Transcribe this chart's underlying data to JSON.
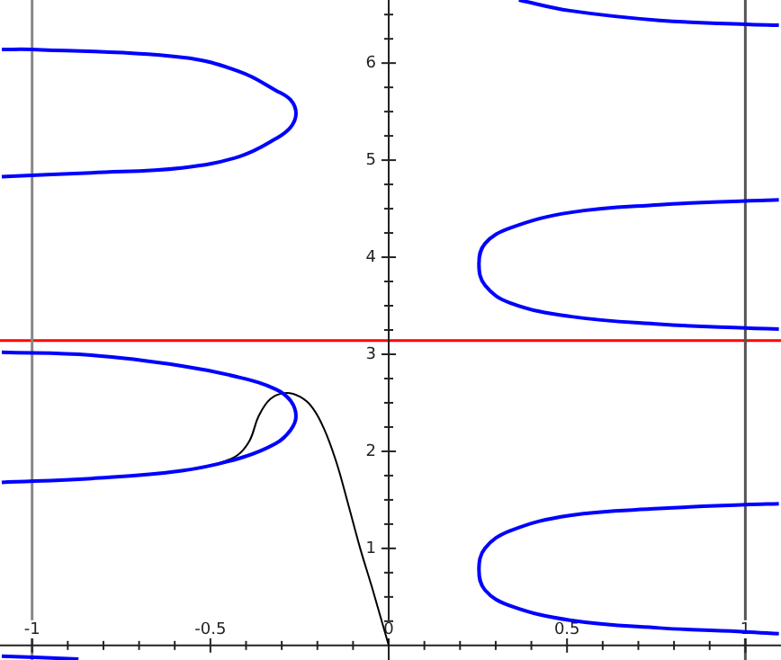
{
  "chart_data": {
    "type": "line",
    "legend": false,
    "marker": "none",
    "line_style": "solid",
    "xlim": [
      -1.09,
      1.1
    ],
    "ylim": [
      -0.15,
      6.65
    ],
    "xticks": [
      -1,
      {
        "value": -0.9,
        "label": null
      },
      {
        "value": -0.8,
        "label": null
      },
      {
        "value": -0.7,
        "label": null
      },
      {
        "value": -0.6,
        "label": null
      },
      -0.5,
      {
        "value": -0.4,
        "label": null
      },
      {
        "value": -0.3,
        "label": null
      },
      {
        "value": -0.2,
        "label": null
      },
      {
        "value": -0.1,
        "label": null
      },
      0,
      {
        "value": 0.1,
        "label": null
      },
      {
        "value": 0.2,
        "label": null
      },
      {
        "value": 0.3,
        "label": null
      },
      {
        "value": 0.4,
        "label": null
      },
      0.5,
      {
        "value": 0.6,
        "label": null
      },
      {
        "value": 0.7,
        "label": null
      },
      {
        "value": 0.8,
        "label": null
      },
      {
        "value": 0.9,
        "label": null
      },
      1
    ],
    "yticks": [
      {
        "value": 0.25,
        "label": null
      },
      {
        "value": 0.5,
        "label": null
      },
      {
        "value": 0.75,
        "label": null
      },
      1,
      {
        "value": 1.25,
        "label": null
      },
      {
        "value": 1.5,
        "label": null
      },
      {
        "value": 1.75,
        "label": null
      },
      2,
      {
        "value": 2.25,
        "label": null
      },
      {
        "value": 2.5,
        "label": null
      },
      {
        "value": 2.75,
        "label": null
      },
      3,
      {
        "value": 3.25,
        "label": null
      },
      {
        "value": 3.5,
        "label": null
      },
      {
        "value": 3.75,
        "label": null
      },
      4,
      {
        "value": 4.25,
        "label": null
      },
      {
        "value": 4.5,
        "label": null
      },
      {
        "value": 4.75,
        "label": null
      },
      5,
      {
        "value": 5.25,
        "label": null
      },
      {
        "value": 5.5,
        "label": null
      },
      {
        "value": 5.75,
        "label": null
      },
      6,
      {
        "value": 6.25,
        "label": null
      },
      {
        "value": 6.5,
        "label": null
      }
    ],
    "ref_lines": [
      {
        "axis": "y",
        "value": 3.14,
        "color": "#ff0000"
      },
      {
        "axis": "x",
        "value": -1,
        "color": "#888888"
      },
      {
        "axis": "x",
        "value": 1,
        "color": "#555555"
      }
    ],
    "series": [
      {
        "color": "#0000ff",
        "x": [
          -1.085,
          -1,
          -0.58,
          -0.417,
          -0.317,
          -0.275,
          -0.26,
          -0.275,
          -0.317,
          -0.417,
          -0.58,
          -0.834,
          -1.085
        ],
        "values": [
          6.14,
          6.14,
          6.06,
          5.91,
          5.72,
          5.62,
          5.48,
          5.34,
          5.22,
          5.04,
          4.92,
          4.87,
          4.83
        ]
      },
      {
        "color": "#0000ff",
        "x": [
          -1.085,
          -0.834,
          -0.58,
          -0.417,
          -0.317,
          -0.275,
          -0.26,
          -0.275,
          -0.317,
          -0.417,
          -0.58,
          -0.834,
          -1.085
        ],
        "values": [
          3.02,
          2.99,
          2.88,
          2.76,
          2.64,
          2.52,
          2.36,
          2.22,
          2.08,
          1.93,
          1.8,
          1.72,
          1.68
        ]
      },
      {
        "color": "#0000ff",
        "x": [
          -1.085,
          -0.87
        ],
        "values": [
          -0.11,
          -0.14
        ]
      },
      {
        "color": "#0000ff",
        "x": [
          1.094,
          1,
          0.759,
          0.508,
          0.34,
          0.27,
          0.253,
          0.27,
          0.34,
          0.508,
          0.759,
          1,
          1.094
        ],
        "values": [
          1.46,
          1.45,
          1.41,
          1.34,
          1.18,
          1,
          0.78,
          0.57,
          0.41,
          0.26,
          0.18,
          0.14,
          0.12
        ]
      },
      {
        "color": "#0000ff",
        "x": [
          1.094,
          1,
          0.759,
          0.508,
          0.34,
          0.27,
          0.253,
          0.27,
          0.34,
          0.508,
          0.759,
          1,
          1.094
        ],
        "values": [
          4.59,
          4.58,
          4.54,
          4.46,
          4.3,
          4.14,
          3.93,
          3.71,
          3.53,
          3.39,
          3.31,
          3.27,
          3.26
        ]
      },
      {
        "color": "#0000ff",
        "x": [
          0.365,
          0.508,
          0.759,
          1,
          1.094
        ],
        "values": [
          6.65,
          6.54,
          6.44,
          6.4,
          6.39
        ]
      },
      {
        "color": "#000000",
        "x": [
          0,
          -0.047,
          -0.08,
          -0.114,
          -0.147,
          -0.181,
          -0.214,
          -0.248,
          -0.29,
          -0.332,
          -0.365,
          -0.39,
          -0.424,
          -0.474
        ],
        "values": [
          0,
          0.6,
          1,
          1.46,
          1.89,
          2.23,
          2.45,
          2.56,
          2.6,
          2.54,
          2.36,
          2.11,
          1.96,
          1.88
        ]
      }
    ]
  }
}
